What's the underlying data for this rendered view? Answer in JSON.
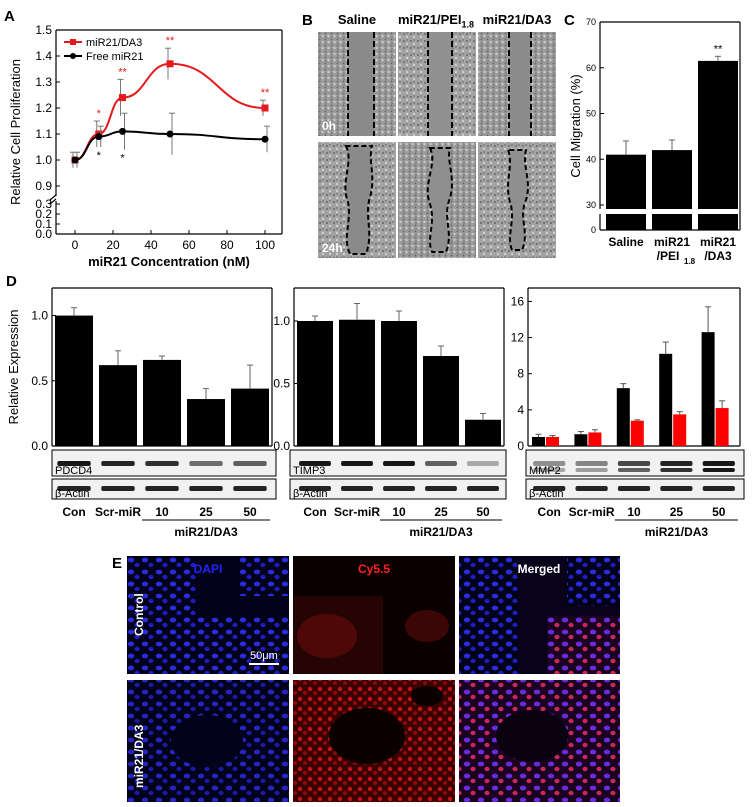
{
  "panels": {
    "a": "A",
    "b": "B",
    "c": "C",
    "d": "D",
    "e": "E"
  },
  "chart_data": [
    {
      "id": "A",
      "type": "line",
      "title": "",
      "xlabel": "miR21 Concentration (nM)",
      "ylabel": "Relative Cell Proliferation",
      "xticks": [
        "0",
        "20",
        "40",
        "60",
        "80",
        "100"
      ],
      "yticks_upper": [
        "0.9",
        "1.0",
        "1.1",
        "1.2",
        "1.3",
        "1.4",
        "1.5"
      ],
      "yticks_lower": [
        "0.0",
        "0.1",
        "0.2",
        "0.3"
      ],
      "legend": [
        "miR21/DA3",
        "Free miR21"
      ],
      "series": [
        {
          "name": "miR21/DA3",
          "color": "#e41a1c",
          "x": [
            0,
            12.5,
            25,
            50,
            100
          ],
          "values": [
            1.0,
            1.1,
            1.24,
            1.37,
            1.2
          ],
          "errors": [
            0.03,
            0.05,
            0.07,
            0.06,
            0.03
          ],
          "sig": [
            "",
            "*",
            "**",
            "**",
            "**"
          ]
        },
        {
          "name": "Free miR21",
          "color": "#000000",
          "x": [
            0,
            12.5,
            25,
            50,
            100
          ],
          "values": [
            1.0,
            1.09,
            1.11,
            1.1,
            1.08
          ],
          "errors": [
            0.03,
            0.04,
            0.07,
            0.08,
            0.05
          ],
          "sig": [
            "",
            "*",
            "*",
            "",
            ""
          ]
        }
      ]
    },
    {
      "id": "C",
      "type": "bar",
      "ylabel": "Cell Migration (%)",
      "categories": [
        "Saline",
        "miR21 /PEI1.8",
        "miR21 /DA3"
      ],
      "cat_lines": [
        [
          "Saline"
        ],
        [
          "miR21",
          "/PEI",
          "1.8"
        ],
        [
          "miR21",
          "/DA3"
        ]
      ],
      "values": [
        41,
        42,
        61.5
      ],
      "errors": [
        3,
        2.2,
        1
      ],
      "yticks_upper": [
        "30",
        "40",
        "50",
        "60",
        "70"
      ],
      "yticks_lower": [
        "0"
      ],
      "sig": [
        "",
        "",
        "**"
      ]
    },
    {
      "id": "D1",
      "type": "bar",
      "ylabel": "Relative Expression",
      "protein": "PDCD4",
      "loading": "β-Actin",
      "categories": [
        "Con",
        "Scr-miR",
        "10",
        "25",
        "50"
      ],
      "values": [
        1.0,
        0.62,
        0.66,
        0.36,
        0.44
      ],
      "errors": [
        0.06,
        0.11,
        0.03,
        0.08,
        0.18
      ],
      "yticks": [
        "0.0",
        "0.5",
        "1.0"
      ],
      "group_label": "miR21/DA3"
    },
    {
      "id": "D2",
      "type": "bar",
      "protein": "TIMP3",
      "loading": "β-Actin",
      "categories": [
        "Con",
        "Scr-miR",
        "10",
        "25",
        "50"
      ],
      "values": [
        1.0,
        1.01,
        1.0,
        0.72,
        0.21
      ],
      "errors": [
        0.04,
        0.13,
        0.08,
        0.08,
        0.05
      ],
      "yticks": [
        "0.0",
        "0.5",
        "1.0"
      ],
      "group_label": "miR21/DA3"
    },
    {
      "id": "D3",
      "type": "bar",
      "protein": "MMP2",
      "loading": "β-Actin",
      "categories": [
        "Con",
        "Scr-miR",
        "10",
        "25",
        "50"
      ],
      "series": [
        {
          "name": "black",
          "color": "#000000",
          "values": [
            1.0,
            1.3,
            6.4,
            10.2,
            12.6
          ],
          "errors": [
            0.3,
            0.3,
            0.5,
            1.3,
            2.8
          ]
        },
        {
          "name": "red",
          "color": "#ff0000",
          "values": [
            1.0,
            1.5,
            2.8,
            3.5,
            4.2
          ],
          "errors": [
            0.15,
            0.3,
            0.1,
            0.3,
            0.8
          ]
        }
      ],
      "yticks": [
        "0",
        "4",
        "8",
        "12",
        "16"
      ],
      "group_label": "miR21/DA3"
    }
  ],
  "panel_b": {
    "columns": [
      "Saline",
      "miR21/PEI",
      "miR21/DA3"
    ],
    "col2_sub": "1.8",
    "times": [
      "0h",
      "24h"
    ]
  },
  "panel_e": {
    "columns": [
      "DAPI",
      "Cy5.5",
      "Merged"
    ],
    "rows": [
      "Control",
      "miR21/DA3"
    ],
    "scale_bar": "50μm"
  }
}
